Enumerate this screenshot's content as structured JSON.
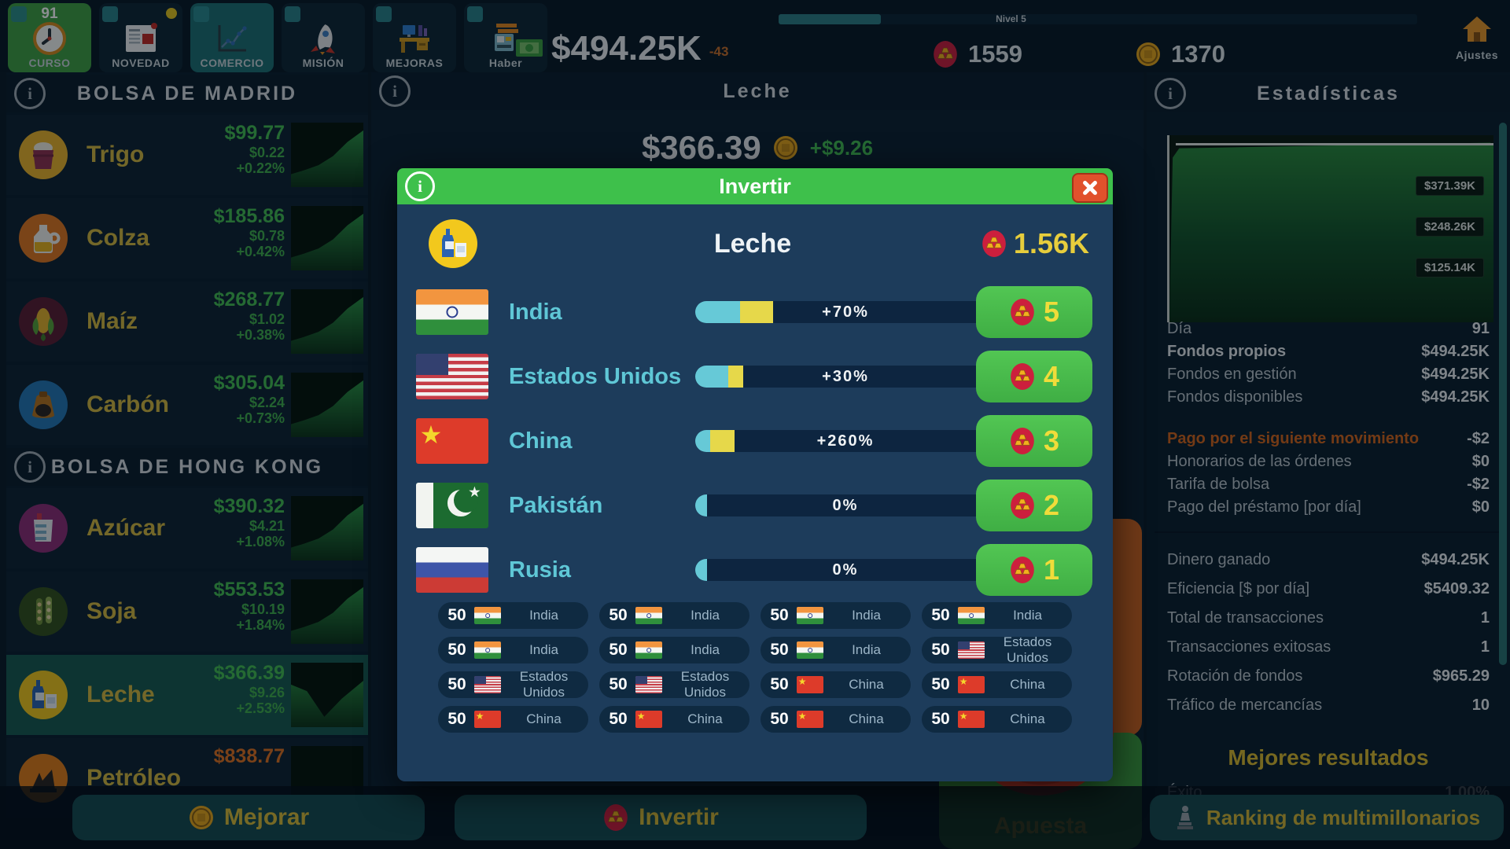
{
  "topbar": {
    "nav": [
      {
        "id": "curso",
        "label": "CURSO",
        "badge": "91",
        "style": "green",
        "icon": "clock"
      },
      {
        "id": "novedad",
        "label": "NOVEDAD",
        "style": "",
        "icon": "news",
        "dot": true
      },
      {
        "id": "comercio",
        "label": "COMERCIO",
        "style": "active",
        "icon": "chart"
      },
      {
        "id": "mision",
        "label": "MISIÓN",
        "style": "",
        "icon": "rocket"
      },
      {
        "id": "mejoras",
        "label": "MEJORAS",
        "style": "",
        "icon": "desk"
      },
      {
        "id": "haber",
        "label": "Haber",
        "style": "",
        "icon": "register"
      }
    ],
    "level_label": "Nivel 5",
    "level_pct": 16,
    "money": "$494.25K",
    "money_delta": "-43",
    "gold_count": "1559",
    "coin_count": "1370",
    "settings_label": "Ajustes"
  },
  "left_panel": {
    "sections": [
      {
        "title": "BOLSA DE MADRID",
        "rows": [
          {
            "name": "Trigo",
            "price": "$99.77",
            "change": "$0.22",
            "pct": "+0.22%",
            "icon": "wheat",
            "chart": "up"
          },
          {
            "name": "Colza",
            "price": "$185.86",
            "change": "$0.78",
            "pct": "+0.42%",
            "icon": "rapeseed",
            "chart": "up"
          },
          {
            "name": "Maíz",
            "price": "$268.77",
            "change": "$1.02",
            "pct": "+0.38%",
            "icon": "corn",
            "chart": "up"
          },
          {
            "name": "Carbón",
            "price": "$305.04",
            "change": "$2.24",
            "pct": "+0.73%",
            "icon": "coal",
            "chart": "up"
          }
        ]
      },
      {
        "title": "BOLSA DE HONG KONG",
        "rows": [
          {
            "name": "Azúcar",
            "price": "$390.32",
            "change": "$4.21",
            "pct": "+1.08%",
            "icon": "sugar",
            "chart": "up"
          },
          {
            "name": "Soja",
            "price": "$553.53",
            "change": "$10.19",
            "pct": "+1.84%",
            "icon": "soy",
            "chart": "up"
          },
          {
            "name": "Leche",
            "price": "$366.39",
            "change": "$9.26",
            "pct": "+2.53%",
            "icon": "milk",
            "chart": "dip",
            "selected": true
          },
          {
            "name": "Petróleo",
            "price": "$838.77",
            "change": "",
            "pct": "",
            "icon": "oil",
            "chart": "down",
            "down": true
          }
        ]
      }
    ],
    "upgrade_label": "Mejorar"
  },
  "center": {
    "title": "Leche",
    "price": "$366.39",
    "change": "+$9.26",
    "invest_label": "Invertir",
    "bet_label": "Apuesta"
  },
  "modal": {
    "title": "Invertir",
    "commodity": "Leche",
    "cost": "1.56K",
    "countries": [
      {
        "flag": "india",
        "name": "India",
        "pct": "+70%",
        "level": "5",
        "teal": 15,
        "yellow": 11
      },
      {
        "flag": "usa",
        "name": "Estados Unidos",
        "pct": "+30%",
        "level": "4",
        "teal": 11,
        "yellow": 5
      },
      {
        "flag": "china",
        "name": "China",
        "pct": "+260%",
        "level": "3",
        "teal": 5,
        "yellow": 8
      },
      {
        "flag": "pakistan",
        "name": "Pakistán",
        "pct": "0%",
        "level": "2",
        "teal": 4,
        "yellow": 0
      },
      {
        "flag": "russia",
        "name": "Rusia",
        "pct": "0%",
        "level": "1",
        "teal": 4,
        "yellow": 0
      }
    ],
    "chips": [
      {
        "amount": "50",
        "flag": "india",
        "label": "India"
      },
      {
        "amount": "50",
        "flag": "india",
        "label": "India"
      },
      {
        "amount": "50",
        "flag": "india",
        "label": "India"
      },
      {
        "amount": "50",
        "flag": "india",
        "label": "India"
      },
      {
        "amount": "50",
        "flag": "india",
        "label": "India"
      },
      {
        "amount": "50",
        "flag": "india",
        "label": "India"
      },
      {
        "amount": "50",
        "flag": "india",
        "label": "India"
      },
      {
        "amount": "50",
        "flag": "usa",
        "label": "Estados Unidos"
      },
      {
        "amount": "50",
        "flag": "usa",
        "label": "Estados Unidos"
      },
      {
        "amount": "50",
        "flag": "usa",
        "label": "Estados Unidos"
      },
      {
        "amount": "50",
        "flag": "china",
        "label": "China"
      },
      {
        "amount": "50",
        "flag": "china",
        "label": "China"
      },
      {
        "amount": "50",
        "flag": "china",
        "label": "China"
      },
      {
        "amount": "50",
        "flag": "china",
        "label": "China"
      },
      {
        "amount": "50",
        "flag": "china",
        "label": "China"
      },
      {
        "amount": "50",
        "flag": "china",
        "label": "China"
      }
    ]
  },
  "right_panel": {
    "title": "Estadísticas",
    "chart_labels": [
      "$371.39K",
      "$248.26K",
      "$125.14K"
    ],
    "stats_a": [
      {
        "l": "Día",
        "v": "91"
      },
      {
        "l": "Fondos propios",
        "v": "$494.25K",
        "cls": "bold"
      },
      {
        "l": "Fondos en gestión",
        "v": "$494.25K"
      },
      {
        "l": "Fondos disponibles",
        "v": "$494.25K"
      }
    ],
    "stats_b": [
      {
        "l": "Pago por el siguiente movimiento",
        "v": "-$2",
        "cls": "orange"
      },
      {
        "l": "Honorarios de las órdenes",
        "v": "$0"
      },
      {
        "l": "Tarifa de bolsa",
        "v": "-$2"
      },
      {
        "l": "Pago del préstamo [por día]",
        "v": "$0"
      }
    ],
    "stats_c": [
      {
        "l": "Dinero ganado",
        "v": "$494.25K"
      },
      {
        "l": "Eficiencia [$ por día]",
        "v": "$5409.32"
      },
      {
        "l": "Total de transacciones",
        "v": "1"
      },
      {
        "l": "Transacciones exitosas",
        "v": "1"
      },
      {
        "l": "Rotación de fondos",
        "v": "$965.29"
      },
      {
        "l": "Tráfico de mercancías",
        "v": "10"
      }
    ],
    "best_title": "Mejores resultados",
    "best_rows": [
      {
        "l": "Éxito",
        "v": "1.00%"
      }
    ],
    "ranking_label": "Ranking de multimillonarios"
  }
}
